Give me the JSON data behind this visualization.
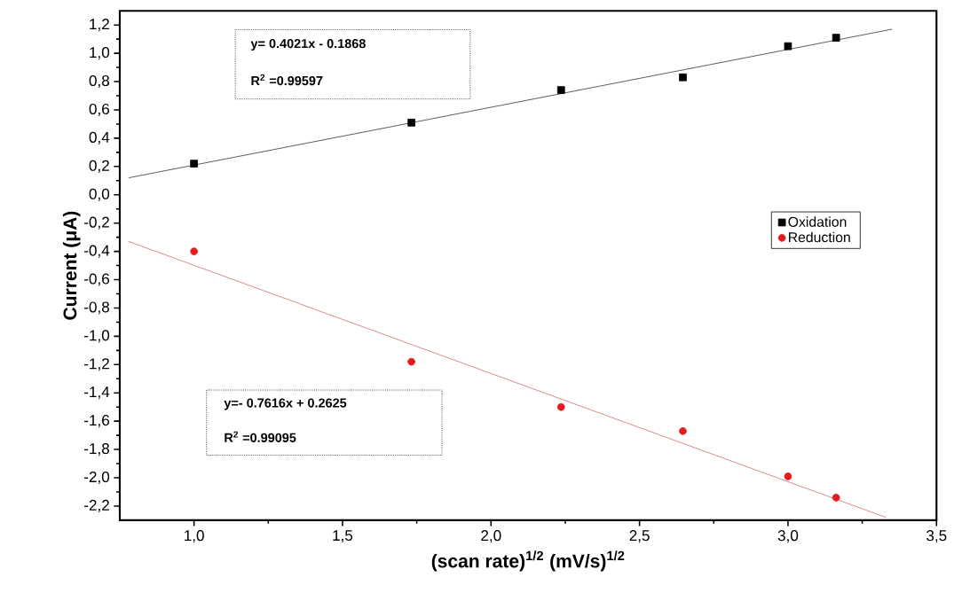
{
  "chart_data": {
    "type": "scatter",
    "xlabel": "(scan rate)$^{1/2}$ (mV/s)$^{1/2}$",
    "ylabel": "Current (μA)",
    "xlim": [
      0.75,
      3.5
    ],
    "ylim": [
      -2.3,
      1.3
    ],
    "xticks": [
      {
        "value": 1.0,
        "label": "1,0"
      },
      {
        "value": 1.5,
        "label": "1,5"
      },
      {
        "value": 2.0,
        "label": "2,0"
      },
      {
        "value": 2.5,
        "label": "2,5"
      },
      {
        "value": 3.0,
        "label": "3,0"
      },
      {
        "value": 3.5,
        "label": "3,5"
      }
    ],
    "yticks": [
      {
        "value": -2.2,
        "label": "-2,2"
      },
      {
        "value": -2.0,
        "label": "-2,0"
      },
      {
        "value": -1.8,
        "label": "-1,8"
      },
      {
        "value": -1.6,
        "label": "-1,6"
      },
      {
        "value": -1.4,
        "label": "-1,4"
      },
      {
        "value": -1.2,
        "label": "-1,2"
      },
      {
        "value": -1.0,
        "label": "-1,0"
      },
      {
        "value": -0.8,
        "label": "-0,8"
      },
      {
        "value": -0.6,
        "label": "-0,6"
      },
      {
        "value": -0.4,
        "label": "-0,4"
      },
      {
        "value": -0.2,
        "label": "-0,2"
      },
      {
        "value": 0.0,
        "label": "0,0"
      },
      {
        "value": 0.2,
        "label": "0,2"
      },
      {
        "value": 0.4,
        "label": "0,4"
      },
      {
        "value": 0.6,
        "label": "0,6"
      },
      {
        "value": 0.8,
        "label": "0,8"
      },
      {
        "value": 1.0,
        "label": "1,0"
      },
      {
        "value": 1.2,
        "label": "1,2"
      }
    ],
    "legend": "right",
    "series": [
      {
        "name": "Oxidation",
        "color": "#000000",
        "marker": "square",
        "x": [
          1.0,
          1.732,
          2.236,
          2.646,
          3.0,
          3.162
        ],
        "values": [
          0.22,
          0.51,
          0.74,
          0.83,
          1.05,
          1.11
        ]
      },
      {
        "name": "Reduction",
        "color": "#e41a1c",
        "marker": "circle",
        "x": [
          1.0,
          1.732,
          2.236,
          2.646,
          3.0,
          3.162
        ],
        "values": [
          -0.4,
          -1.18,
          -1.5,
          -1.67,
          -1.99,
          -2.14
        ]
      },
      {
        "type": "line",
        "color": "#333333",
        "marker": "none",
        "x": [
          0.78,
          3.35
        ],
        "values": [
          0.12,
          1.17
        ]
      },
      {
        "type": "line",
        "color": "#d46a6a",
        "marker": "none",
        "x": [
          0.78,
          3.33
        ],
        "values": [
          -0.33,
          -2.28
        ]
      }
    ],
    "annotations": [
      "y= 0.4021x - 0.1868",
      "R$^{2}$ =0.99597",
      "y=- 0.7616x + 0.2625",
      "R$^{2}$ =0.99095"
    ]
  }
}
